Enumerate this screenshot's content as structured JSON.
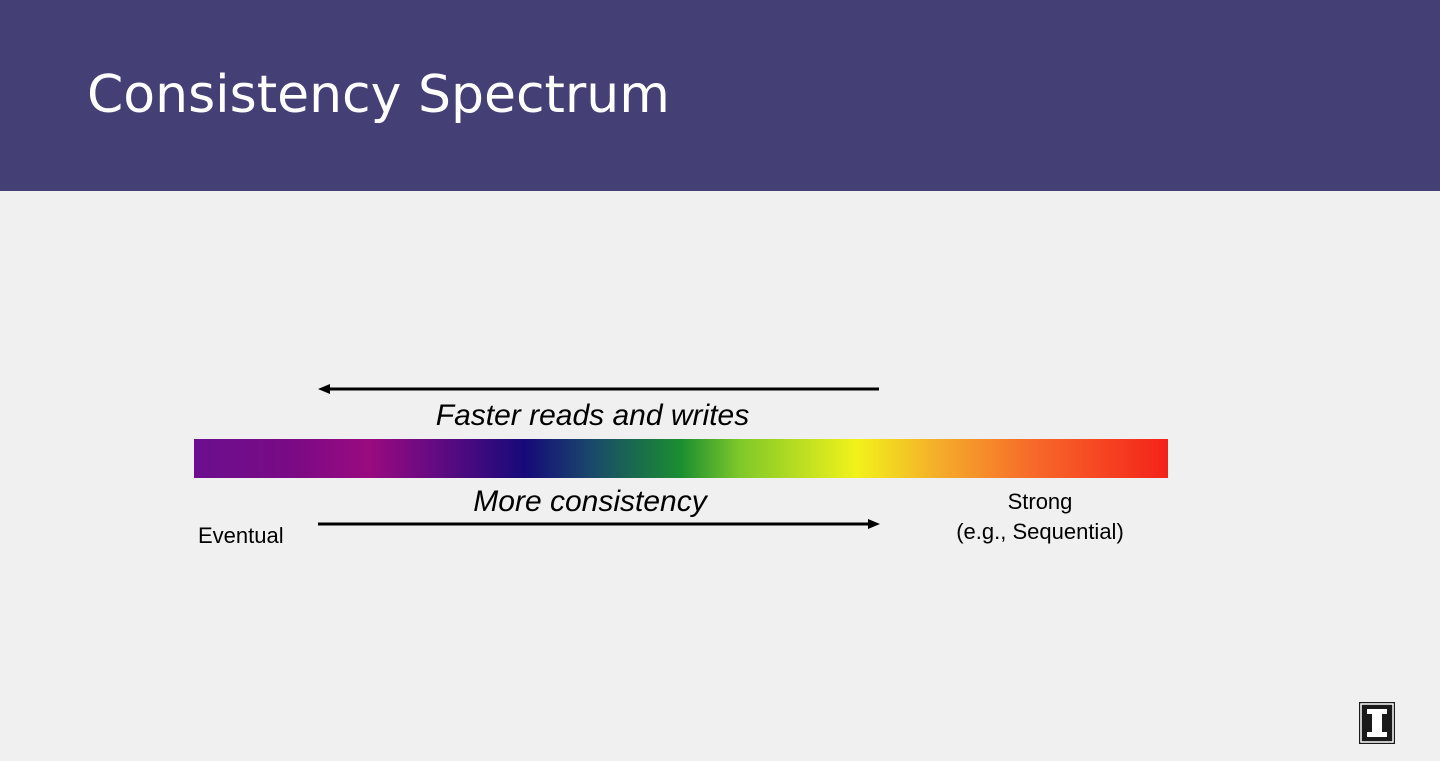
{
  "slide": {
    "title": "Consistency Spectrum"
  },
  "diagram": {
    "top_arrow_label": "Faster reads and writes",
    "bottom_arrow_label": "More consistency",
    "left_end_label": "Eventual",
    "right_end_label": "Strong",
    "right_end_sublabel": "(e.g., Sequential)",
    "top_arrow_direction": "left",
    "bottom_arrow_direction": "right"
  },
  "colors": {
    "header_background": "#443f74",
    "slide_background": "#f0f0f0",
    "title_text": "#ffffff",
    "spectrum_start": "#6a0f8e",
    "spectrum_end": "#f4221a"
  },
  "icons": {
    "logo": "university-block-i-logo"
  }
}
